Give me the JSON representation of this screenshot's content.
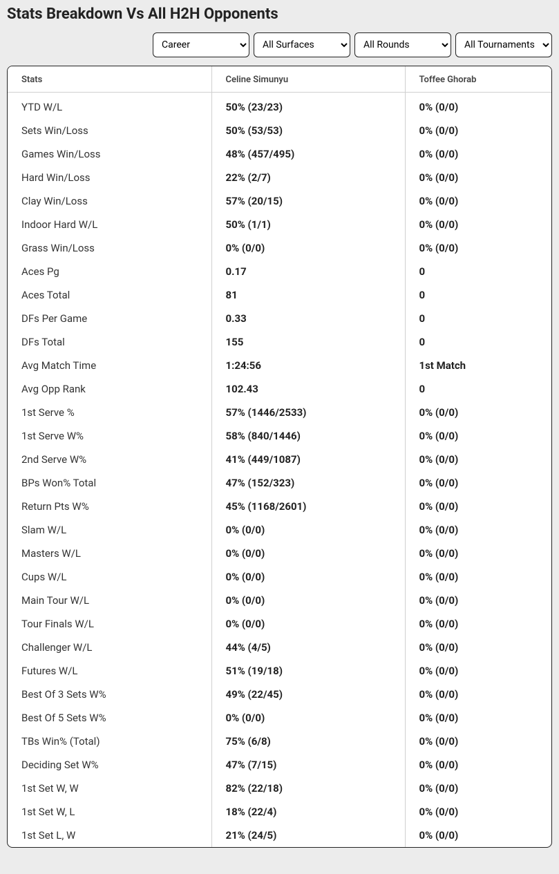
{
  "title": "Stats Breakdown Vs All H2H Opponents",
  "filters": {
    "career": "Career",
    "surfaces": "All Surfaces",
    "rounds": "All Rounds",
    "tournaments": "All Tournaments"
  },
  "columns": {
    "stats": "Stats",
    "player1": "Celine Simunyu",
    "player2": "Toffee Ghorab"
  },
  "rows": [
    {
      "label": "YTD W/L",
      "p1": "50% (23/23)",
      "p2": "0% (0/0)"
    },
    {
      "label": "Sets Win/Loss",
      "p1": "50% (53/53)",
      "p2": "0% (0/0)"
    },
    {
      "label": "Games Win/Loss",
      "p1": "48% (457/495)",
      "p2": "0% (0/0)"
    },
    {
      "label": "Hard Win/Loss",
      "p1": "22% (2/7)",
      "p2": "0% (0/0)"
    },
    {
      "label": "Clay Win/Loss",
      "p1": "57% (20/15)",
      "p2": "0% (0/0)"
    },
    {
      "label": "Indoor Hard W/L",
      "p1": "50% (1/1)",
      "p2": "0% (0/0)"
    },
    {
      "label": "Grass Win/Loss",
      "p1": "0% (0/0)",
      "p2": "0% (0/0)"
    },
    {
      "label": "Aces Pg",
      "p1": "0.17",
      "p2": "0"
    },
    {
      "label": "Aces Total",
      "p1": "81",
      "p2": "0"
    },
    {
      "label": "DFs Per Game",
      "p1": "0.33",
      "p2": "0"
    },
    {
      "label": "DFs Total",
      "p1": "155",
      "p2": "0"
    },
    {
      "label": "Avg Match Time",
      "p1": "1:24:56",
      "p2": "1st Match"
    },
    {
      "label": "Avg Opp Rank",
      "p1": "102.43",
      "p2": "0"
    },
    {
      "label": "1st Serve %",
      "p1": "57% (1446/2533)",
      "p2": "0% (0/0)"
    },
    {
      "label": "1st Serve W%",
      "p1": "58% (840/1446)",
      "p2": "0% (0/0)"
    },
    {
      "label": "2nd Serve W%",
      "p1": "41% (449/1087)",
      "p2": "0% (0/0)"
    },
    {
      "label": "BPs Won% Total",
      "p1": "47% (152/323)",
      "p2": "0% (0/0)"
    },
    {
      "label": "Return Pts W%",
      "p1": "45% (1168/2601)",
      "p2": "0% (0/0)"
    },
    {
      "label": "Slam W/L",
      "p1": "0% (0/0)",
      "p2": "0% (0/0)"
    },
    {
      "label": "Masters W/L",
      "p1": "0% (0/0)",
      "p2": "0% (0/0)"
    },
    {
      "label": "Cups W/L",
      "p1": "0% (0/0)",
      "p2": "0% (0/0)"
    },
    {
      "label": "Main Tour W/L",
      "p1": "0% (0/0)",
      "p2": "0% (0/0)"
    },
    {
      "label": "Tour Finals W/L",
      "p1": "0% (0/0)",
      "p2": "0% (0/0)"
    },
    {
      "label": "Challenger W/L",
      "p1": "44% (4/5)",
      "p2": "0% (0/0)"
    },
    {
      "label": "Futures W/L",
      "p1": "51% (19/18)",
      "p2": "0% (0/0)"
    },
    {
      "label": "Best Of 3 Sets W%",
      "p1": "49% (22/45)",
      "p2": "0% (0/0)"
    },
    {
      "label": "Best Of 5 Sets W%",
      "p1": "0% (0/0)",
      "p2": "0% (0/0)"
    },
    {
      "label": "TBs Win% (Total)",
      "p1": "75% (6/8)",
      "p2": "0% (0/0)"
    },
    {
      "label": "Deciding Set W%",
      "p1": "47% (7/15)",
      "p2": "0% (0/0)"
    },
    {
      "label": "1st Set W, W",
      "p1": "82% (22/18)",
      "p2": "0% (0/0)"
    },
    {
      "label": "1st Set W, L",
      "p1": "18% (22/4)",
      "p2": "0% (0/0)"
    },
    {
      "label": "1st Set L, W",
      "p1": "21% (24/5)",
      "p2": "0% (0/0)"
    }
  ]
}
